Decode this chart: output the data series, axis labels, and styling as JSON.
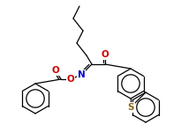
{
  "bg_color": "#ffffff",
  "line_color": "#000000",
  "atom_colors": {
    "O": "#cc0000",
    "N": "#0000cc",
    "S": "#8B6914"
  },
  "figsize": [
    2.22,
    1.5
  ],
  "dpi": 100
}
